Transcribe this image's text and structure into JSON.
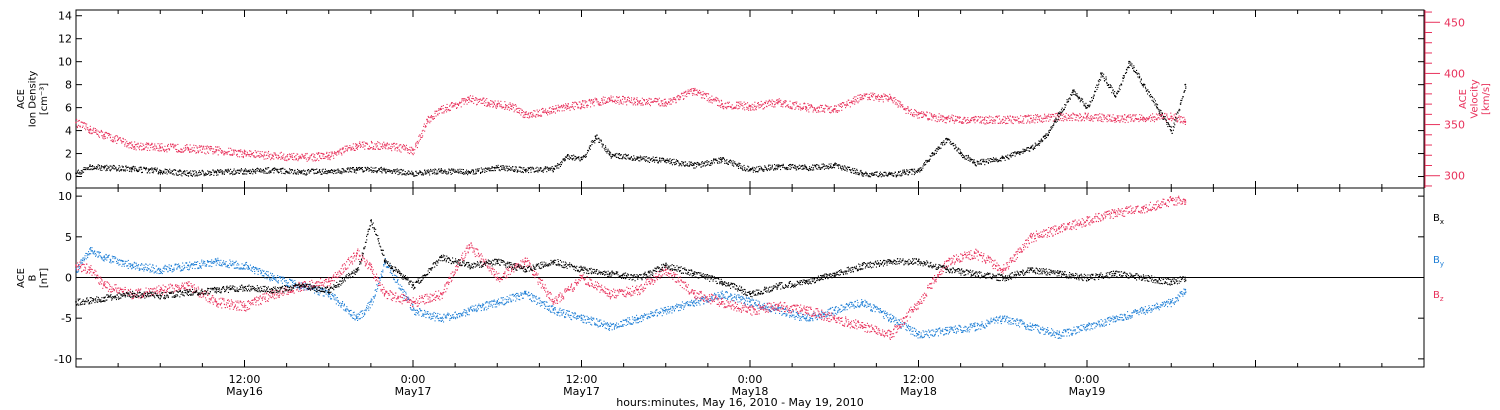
{
  "figure": {
    "xlabel": "hours:minutes, May 16, 2010 - May 19, 2010",
    "time_range_hours": [
      0,
      96
    ],
    "ticks": [
      {
        "hour": 12,
        "time": "12:00",
        "date": "May16"
      },
      {
        "hour": 24,
        "time": "0:00",
        "date": "May17"
      },
      {
        "hour": 36,
        "time": "12:00",
        "date": "May17"
      },
      {
        "hour": 48,
        "time": "0:00",
        "date": "May18"
      },
      {
        "hour": 60,
        "time": "12:00",
        "date": "May18"
      },
      {
        "hour": 72,
        "time": "0:00",
        "date": "May19"
      }
    ]
  },
  "colors": {
    "black": "#000000",
    "red": "#e8315b",
    "blue": "#1f7fd6"
  },
  "chart_data": [
    {
      "type": "scatter",
      "title": "",
      "ylabel_lines": [
        "ACE",
        "Ion Density",
        "[cm⁻³]"
      ],
      "ylim": [
        -1,
        14.5
      ],
      "yticks": [
        0,
        2,
        4,
        6,
        8,
        10,
        12,
        14
      ],
      "ylabel_right_lines": [
        "ACE",
        "Velocity",
        "[km/s]"
      ],
      "ylim_right": [
        288,
        462
      ],
      "yticks_right": [
        300,
        350,
        400,
        450
      ],
      "series": [
        {
          "name": "",
          "axis": "left",
          "color": "#000000",
          "x": [
            0,
            1,
            2,
            4,
            6,
            8,
            10,
            12,
            14,
            16,
            18,
            20,
            22,
            24,
            26,
            28,
            30,
            32,
            34,
            35,
            36,
            37,
            38,
            40,
            42,
            44,
            46,
            48,
            50,
            52,
            54,
            56,
            58,
            59,
            60,
            61,
            62,
            63,
            64,
            66,
            68,
            69,
            70,
            71,
            72,
            73,
            74,
            75,
            76,
            77,
            78,
            79
          ],
          "y": [
            0.3,
            0.9,
            0.8,
            0.7,
            0.5,
            0.3,
            0.4,
            0.5,
            0.6,
            0.4,
            0.5,
            0.6,
            0.6,
            0.3,
            0.5,
            0.4,
            0.8,
            0.6,
            0.7,
            1.8,
            1.5,
            3.5,
            1.9,
            1.6,
            1.4,
            1.0,
            1.5,
            0.6,
            0.9,
            0.8,
            1.0,
            0.3,
            0.2,
            0.4,
            0.5,
            2.0,
            3.3,
            2.0,
            1.2,
            1.6,
            2.5,
            3.5,
            5.5,
            7.5,
            6.0,
            9.0,
            7.0,
            10.0,
            8.0,
            6.0,
            4.0,
            8.0
          ]
        },
        {
          "name": "",
          "axis": "right",
          "color": "#e8315b",
          "x": [
            0,
            1,
            2,
            4,
            6,
            8,
            10,
            12,
            14,
            16,
            18,
            20,
            22,
            24,
            25,
            26,
            28,
            30,
            31,
            32,
            34,
            35,
            36,
            38,
            40,
            42,
            44,
            46,
            48,
            50,
            52,
            54,
            56,
            58,
            59,
            60,
            62,
            64,
            66,
            68,
            70,
            72,
            74,
            76,
            78,
            79
          ],
          "y": [
            352,
            345,
            340,
            330,
            328,
            327,
            325,
            322,
            320,
            318,
            320,
            330,
            330,
            325,
            355,
            365,
            375,
            370,
            368,
            360,
            365,
            368,
            370,
            375,
            373,
            372,
            383,
            370,
            368,
            372,
            367,
            365,
            378,
            376,
            365,
            360,
            356,
            355,
            355,
            356,
            358,
            358,
            356,
            357,
            358,
            353
          ]
        }
      ]
    },
    {
      "type": "scatter",
      "title": "",
      "ylabel_lines": [
        "ACE",
        "B",
        "[nT]"
      ],
      "ylim": [
        -11,
        11
      ],
      "yticks": [
        -10,
        -5,
        0,
        5,
        10
      ],
      "legend": [
        "Bx",
        "By",
        "Bz"
      ],
      "series": [
        {
          "name": "Bx",
          "color": "#000000",
          "x": [
            0,
            2,
            4,
            6,
            8,
            10,
            12,
            14,
            16,
            18,
            20,
            21,
            22,
            24,
            26,
            28,
            30,
            32,
            34,
            36,
            38,
            40,
            42,
            44,
            46,
            48,
            50,
            52,
            54,
            56,
            58,
            60,
            62,
            64,
            66,
            68,
            70,
            72,
            74,
            76,
            78,
            79
          ],
          "y": [
            -3,
            -2.5,
            -2,
            -2.2,
            -1.8,
            -1.5,
            -1.2,
            -1.5,
            -1,
            -1.5,
            1,
            7,
            2,
            -1,
            2.5,
            1.5,
            2,
            1,
            2,
            1,
            0.5,
            0,
            1.5,
            0.5,
            -0.5,
            -2,
            -1,
            -0.5,
            0.5,
            1.5,
            2,
            2,
            1,
            0.5,
            0,
            1,
            0.5,
            0,
            0.5,
            0,
            -0.5,
            0
          ]
        },
        {
          "name": "By",
          "color": "#1f7fd6",
          "x": [
            0,
            1,
            2,
            4,
            6,
            8,
            10,
            12,
            14,
            16,
            18,
            20,
            21,
            22,
            24,
            26,
            28,
            30,
            32,
            34,
            36,
            38,
            40,
            42,
            44,
            46,
            48,
            50,
            52,
            54,
            56,
            58,
            60,
            62,
            64,
            66,
            68,
            70,
            72,
            74,
            76,
            78,
            79
          ],
          "y": [
            1,
            3.5,
            2.5,
            1.5,
            1,
            1.5,
            2,
            1.5,
            0,
            -1,
            -2,
            -5,
            -3,
            2,
            -4,
            -5,
            -4,
            -3,
            -2,
            -4,
            -5,
            -6,
            -5,
            -4,
            -3,
            -2,
            -3,
            -4,
            -5,
            -4,
            -3,
            -5,
            -7,
            -6.5,
            -6,
            -5,
            -6,
            -7,
            -6,
            -5,
            -4,
            -3,
            -1.5
          ]
        },
        {
          "name": "Bz",
          "color": "#e8315b",
          "x": [
            0,
            1,
            2,
            4,
            6,
            8,
            10,
            12,
            14,
            16,
            18,
            20,
            21,
            22,
            24,
            26,
            28,
            30,
            32,
            34,
            36,
            38,
            40,
            42,
            44,
            46,
            48,
            50,
            52,
            54,
            56,
            58,
            60,
            62,
            64,
            66,
            68,
            70,
            72,
            74,
            76,
            78,
            79
          ],
          "y": [
            1.5,
            1,
            -1,
            -2,
            -1.5,
            -1,
            -3,
            -3.5,
            -2,
            -1,
            -0.5,
            3,
            1,
            -2,
            -3,
            -2,
            4,
            0,
            2,
            -3,
            0,
            -2,
            -1.5,
            1,
            -2,
            -3,
            -4,
            -3.5,
            -4,
            -5,
            -6,
            -7,
            -3,
            2,
            3,
            1,
            5,
            6,
            7,
            8,
            8.5,
            9.5,
            9.5
          ]
        }
      ]
    }
  ]
}
